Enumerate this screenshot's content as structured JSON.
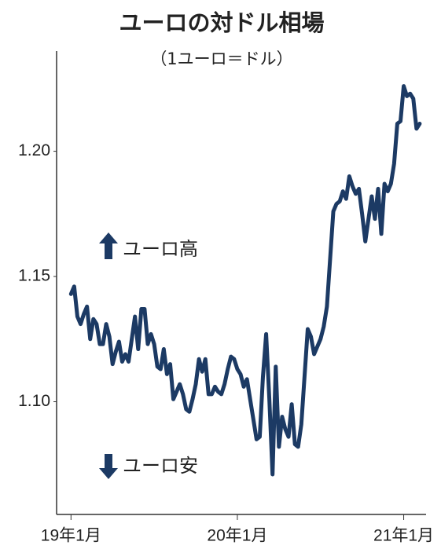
{
  "chart_data": {
    "type": "line",
    "title": "ユーロの対ドル相場",
    "subtitle": "（1ユーロ＝ドル）",
    "annotations": [
      "ユーロ高",
      "ユーロ安"
    ],
    "color": "#1c3a64",
    "x": [
      0,
      1,
      2,
      3,
      4,
      5,
      6,
      7,
      8,
      9,
      10,
      11,
      12,
      13,
      14,
      15,
      16,
      17,
      18,
      19,
      20,
      21,
      22,
      23,
      24,
      25,
      26,
      27,
      28,
      29,
      30,
      31,
      32,
      33,
      34,
      35,
      36,
      37,
      38,
      39,
      40,
      41,
      42,
      43,
      44,
      45,
      46,
      47,
      48,
      49,
      50,
      51,
      52,
      53,
      54,
      55,
      56,
      57,
      58,
      59,
      60,
      61,
      62,
      63,
      64,
      65,
      66,
      67,
      68,
      69,
      70,
      71,
      72,
      73,
      74,
      75,
      76,
      77,
      78,
      79,
      80,
      81,
      82,
      83,
      84,
      85,
      86,
      87,
      88,
      89,
      90,
      91,
      92,
      93,
      94,
      95,
      96,
      97,
      98,
      99,
      100,
      101,
      102,
      103,
      104,
      105,
      106,
      107,
      108,
      109
    ],
    "values": [
      1.143,
      1.146,
      1.134,
      1.131,
      1.135,
      1.138,
      1.125,
      1.133,
      1.131,
      1.123,
      1.123,
      1.131,
      1.126,
      1.115,
      1.12,
      1.124,
      1.116,
      1.119,
      1.116,
      1.125,
      1.134,
      1.121,
      1.137,
      1.137,
      1.123,
      1.127,
      1.123,
      1.114,
      1.113,
      1.121,
      1.111,
      1.115,
      1.101,
      1.104,
      1.107,
      1.103,
      1.097,
      1.096,
      1.101,
      1.107,
      1.117,
      1.112,
      1.117,
      1.103,
      1.103,
      1.106,
      1.104,
      1.103,
      1.107,
      1.113,
      1.118,
      1.117,
      1.113,
      1.111,
      1.106,
      1.109,
      1.101,
      1.093,
      1.085,
      1.086,
      1.11,
      1.127,
      1.101,
      1.071,
      1.114,
      1.082,
      1.094,
      1.089,
      1.086,
      1.099,
      1.083,
      1.082,
      1.091,
      1.11,
      1.129,
      1.126,
      1.119,
      1.122,
      1.125,
      1.13,
      1.138,
      1.157,
      1.176,
      1.179,
      1.18,
      1.184,
      1.181,
      1.19,
      1.186,
      1.183,
      1.185,
      1.175,
      1.164,
      1.173,
      1.182,
      1.173,
      1.185,
      1.167,
      1.187,
      1.184,
      1.187,
      1.195,
      1.211,
      1.212,
      1.226,
      1.222,
      1.223,
      1.221,
      1.209,
      1.211
    ],
    "xlim": [
      -4.5,
      110.5
    ],
    "xticks": [
      {
        "value": 0,
        "label": "19年1月"
      },
      {
        "value": 52,
        "label": "20年1月"
      },
      {
        "value": 104,
        "label": "21年1月"
      }
    ],
    "ylim": [
      1.055,
      1.24
    ],
    "yticks": [
      {
        "value": 1.1,
        "label": "1.10"
      },
      1.15,
      {
        "value": 1.2,
        "label": "1.20"
      }
    ],
    "grid": false
  }
}
